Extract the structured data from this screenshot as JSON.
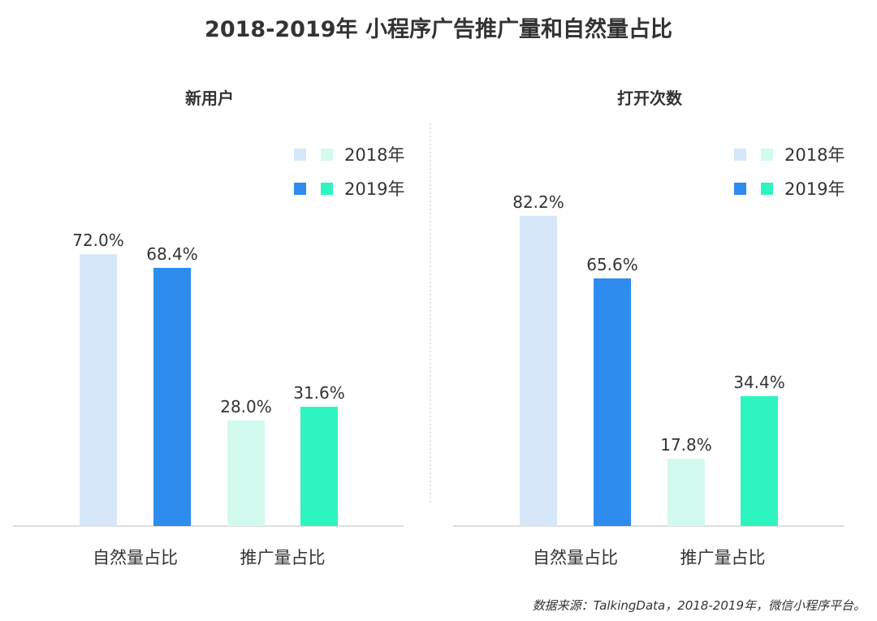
{
  "title": "2018-2019年  小程序广告推广量和自然量占比",
  "source_note": "数据来源：TalkingData，2018-2019年，微信小程序平台。",
  "colors": {
    "natural_2018": "#d6e7fa",
    "natural_2019": "#2e8cef",
    "promo_2018": "#d3faee",
    "promo_2019": "#2ef5bf"
  },
  "chart_data": [
    {
      "type": "bar",
      "title": "新用户",
      "categories": [
        "自然量占比",
        "推广量占比"
      ],
      "series": [
        {
          "name": "2018年",
          "values": [
            72.0,
            28.0
          ]
        },
        {
          "name": "2019年",
          "values": [
            68.4,
            31.6
          ]
        }
      ],
      "value_labels": [
        [
          "72.0%",
          "28.0%"
        ],
        [
          "68.4%",
          "31.6%"
        ]
      ],
      "legend": [
        "2018年",
        "2019年"
      ],
      "legend_position": "top-right",
      "ylim": [
        0,
        100
      ],
      "grid": false
    },
    {
      "type": "bar",
      "title": "打开次数",
      "categories": [
        "自然量占比",
        "推广量占比"
      ],
      "series": [
        {
          "name": "2018年",
          "values": [
            82.2,
            17.8
          ]
        },
        {
          "name": "2019年",
          "values": [
            65.6,
            34.4
          ]
        }
      ],
      "value_labels": [
        [
          "82.2%",
          "17.8%"
        ],
        [
          "65.6%",
          "34.4%"
        ]
      ],
      "legend": [
        "2018年",
        "2019年"
      ],
      "legend_position": "top-right",
      "ylim": [
        0,
        100
      ],
      "grid": false
    }
  ]
}
